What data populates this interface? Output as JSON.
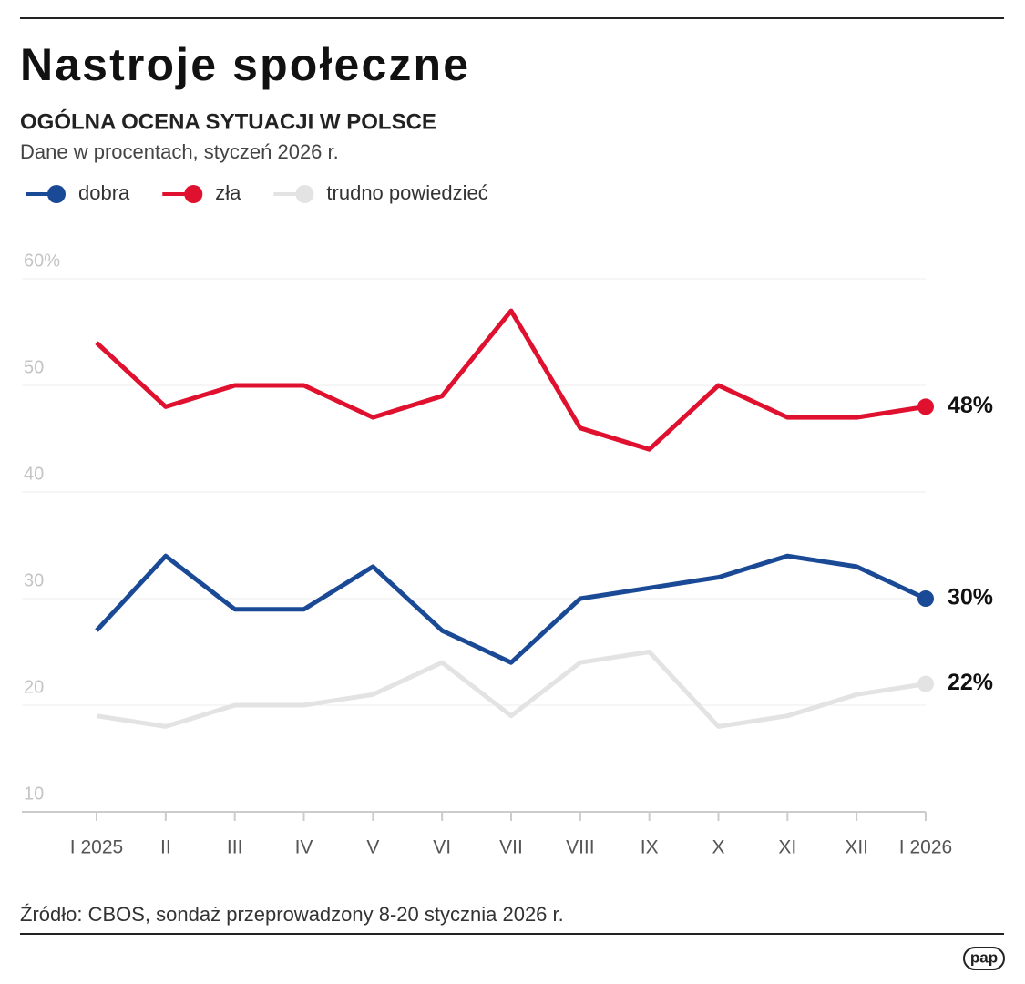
{
  "title": "Nastroje społeczne",
  "chart_data": {
    "type": "line",
    "subtitle": "OGÓLNA OCENA SYTUACJI W POLSCE",
    "description": "Dane w procentach, styczeń 2026 r.",
    "categories": [
      "I 2025",
      "II",
      "III",
      "IV",
      "V",
      "VI",
      "VII",
      "VIII",
      "IX",
      "X",
      "XI",
      "XII",
      "I 2026"
    ],
    "series": [
      {
        "name": "dobra",
        "color": "#1a4a96",
        "values": [
          27,
          34,
          29,
          29,
          33,
          27,
          24,
          30,
          31,
          32,
          34,
          33,
          30
        ],
        "value_labels": [
          null,
          null,
          null,
          null,
          null,
          null,
          null,
          null,
          null,
          null,
          null,
          null,
          "30%"
        ]
      },
      {
        "name": "zła",
        "color": "#e0102f",
        "values": [
          54,
          48,
          50,
          50,
          47,
          49,
          57,
          46,
          44,
          50,
          47,
          47,
          48
        ],
        "value_labels": [
          null,
          null,
          null,
          null,
          null,
          null,
          null,
          null,
          null,
          null,
          null,
          null,
          "48%"
        ]
      },
      {
        "name": "trudno powiedzieć",
        "color": "#e3e3e3",
        "values": [
          19,
          18,
          20,
          20,
          21,
          24,
          19,
          24,
          25,
          18,
          19,
          21,
          22
        ],
        "value_labels": [
          null,
          null,
          null,
          null,
          null,
          null,
          null,
          null,
          null,
          null,
          null,
          null,
          "22%"
        ]
      }
    ],
    "ylim": [
      10,
      60
    ],
    "yticks": [
      10,
      20,
      30,
      40,
      {
        "value": 50,
        "label": "50"
      },
      {
        "value": 60,
        "label": "60%"
      }
    ],
    "grid": true
  },
  "source": "Źródło: CBOS, sondaż przeprowadzony 8-20 stycznia 2026 r.",
  "logo": "pap"
}
